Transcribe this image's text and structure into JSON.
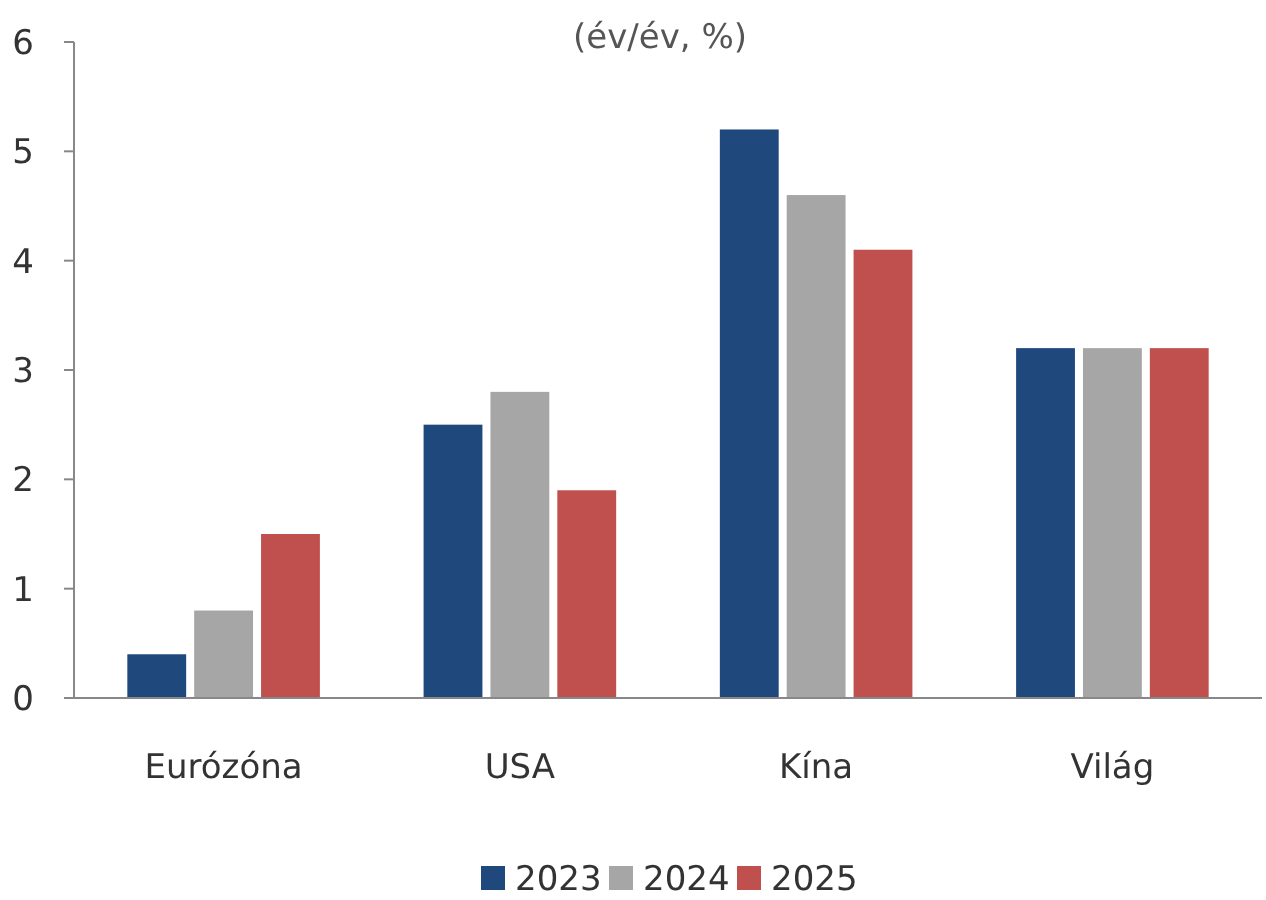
{
  "chart_data": {
    "type": "bar",
    "subtitle": "(év/év, %)",
    "categories": [
      "Eurózóna",
      "USA",
      "Kína",
      "Világ"
    ],
    "series": [
      {
        "name": "2023",
        "color": "#1f497d",
        "values": [
          0.4,
          2.5,
          5.2,
          3.2
        ]
      },
      {
        "name": "2024",
        "color": "#a6a6a6",
        "values": [
          0.8,
          2.8,
          4.6,
          3.2
        ]
      },
      {
        "name": "2025",
        "color": "#c0504d",
        "values": [
          1.5,
          1.9,
          4.1,
          3.2
        ]
      }
    ],
    "ylim": [
      0,
      6
    ],
    "yticks": [
      0,
      1,
      2,
      3,
      4,
      5,
      6
    ],
    "grid": false,
    "legend": "bottom"
  }
}
